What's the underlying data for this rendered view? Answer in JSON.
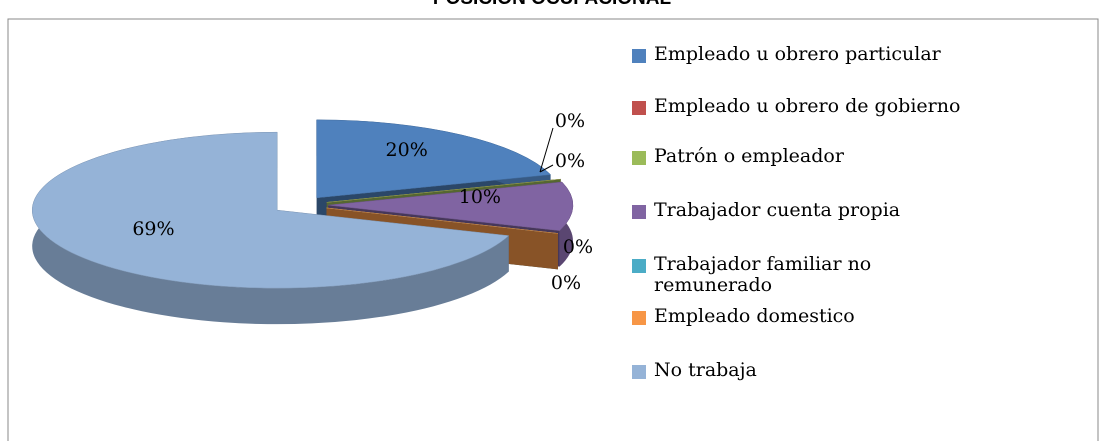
{
  "chart_data": {
    "type": "pie3d",
    "title": "POSICION OCUPACIONAL",
    "categories": [
      "Empleado u obrero particular",
      "Empleado u obrero de gobierno",
      "Patrón o empleador",
      "Trabajador cuenta propia",
      "Trabajador familiar no remunerado",
      "Empleado domestico",
      "No trabaja"
    ],
    "values": [
      20,
      0,
      0,
      10,
      0,
      0,
      69
    ],
    "value_labels": [
      "20%",
      "0%",
      "0%",
      "10%",
      "0%",
      "0%",
      "69%"
    ],
    "colors": [
      "#4f81bd",
      "#c0504d",
      "#9bbb59",
      "#8064a2",
      "#4bacc6",
      "#f79646",
      "#95b3d7"
    ],
    "legend": "right"
  }
}
